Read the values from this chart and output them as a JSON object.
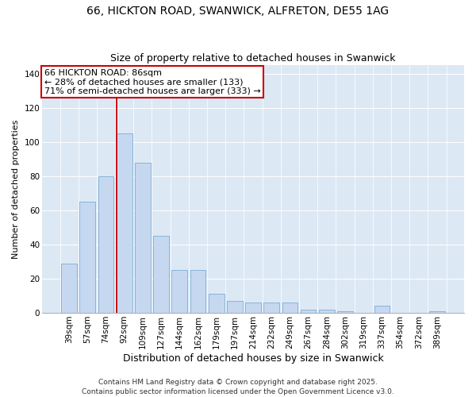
{
  "title": "66, HICKTON ROAD, SWANWICK, ALFRETON, DE55 1AG",
  "subtitle": "Size of property relative to detached houses in Swanwick",
  "xlabel": "Distribution of detached houses by size in Swanwick",
  "ylabel": "Number of detached properties",
  "categories": [
    "39sqm",
    "57sqm",
    "74sqm",
    "92sqm",
    "109sqm",
    "127sqm",
    "144sqm",
    "162sqm",
    "179sqm",
    "197sqm",
    "214sqm",
    "232sqm",
    "249sqm",
    "267sqm",
    "284sqm",
    "302sqm",
    "319sqm",
    "337sqm",
    "354sqm",
    "372sqm",
    "389sqm"
  ],
  "values": [
    29,
    65,
    80,
    105,
    88,
    45,
    25,
    25,
    11,
    7,
    6,
    6,
    6,
    2,
    2,
    1,
    0,
    4,
    0,
    0,
    1
  ],
  "bar_color": "#c5d8f0",
  "bar_edge_color": "#7aadd4",
  "vline_color": "#cc0000",
  "annotation_box_text_line1": "66 HICKTON ROAD: 86sqm",
  "annotation_box_text_line2": "← 28% of detached houses are smaller (133)",
  "annotation_box_text_line3": "71% of semi-detached houses are larger (333) →",
  "ylim": [
    0,
    145
  ],
  "yticks": [
    0,
    20,
    40,
    60,
    80,
    100,
    120,
    140
  ],
  "bg_color": "#dde8f5",
  "grid_color": "#ffffff",
  "footer_line1": "Contains HM Land Registry data © Crown copyright and database right 2025.",
  "footer_line2": "Contains public sector information licensed under the Open Government Licence v3.0.",
  "title_fontsize": 10,
  "subtitle_fontsize": 9,
  "xlabel_fontsize": 9,
  "ylabel_fontsize": 8,
  "tick_fontsize": 7.5,
  "annotation_fontsize": 8,
  "footer_fontsize": 6.5
}
